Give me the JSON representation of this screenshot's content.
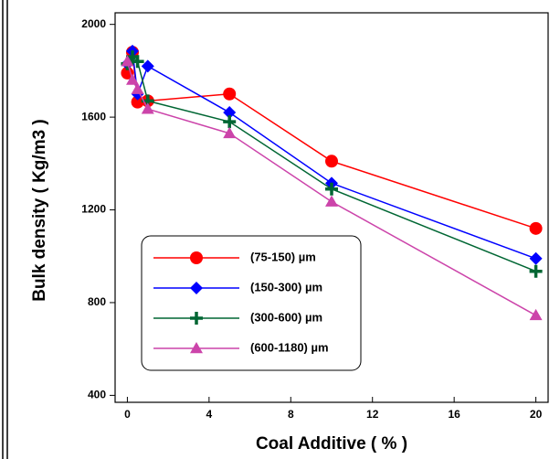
{
  "chart_data": {
    "type": "line",
    "x_label": "Coal Additive ( % )",
    "y_label": "Bulk density  ( Kg/m3 )",
    "x": [
      0,
      0.25,
      0.5,
      1,
      5,
      10,
      20
    ],
    "series": [
      {
        "name": "(75-150) µm",
        "color": "#ff0000",
        "marker": "circle",
        "values": [
          1790,
          1880,
          1665,
          1670,
          1700,
          1410,
          1120
        ]
      },
      {
        "name": "(150-300) µm",
        "color": "#0000ff",
        "marker": "diamond",
        "values": [
          1830,
          1885,
          1700,
          1820,
          1620,
          1315,
          990
        ]
      },
      {
        "name": "(300-600) µm",
        "color": "#006633",
        "marker": "plus",
        "values": [
          1830,
          1860,
          1840,
          1670,
          1580,
          1290,
          935
        ]
      },
      {
        "name": "(600-1180) µm",
        "color": "#cc44aa",
        "marker": "triangle",
        "values": [
          1840,
          1760,
          1720,
          1635,
          1530,
          1235,
          745
        ]
      }
    ],
    "xlim": [
      -0.6,
      20.6
    ],
    "ylim": [
      370,
      2050
    ],
    "xticks": [
      0,
      4,
      8,
      12,
      16,
      20
    ],
    "yticks": [
      400,
      800,
      1200,
      1600,
      2000
    ]
  }
}
